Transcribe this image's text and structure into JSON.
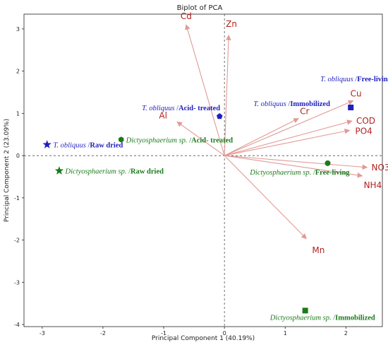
{
  "chart_data": {
    "type": "scatter",
    "title": "Biplot of PCA",
    "xlabel": "Principal Component 1 (40.19%)",
    "ylabel": "Principal Component 2 (23.09%)",
    "xlim": [
      -3.3,
      2.6
    ],
    "ylim": [
      -4.05,
      3.35
    ],
    "xticks": [
      -3,
      -2,
      -1,
      0,
      1,
      2
    ],
    "yticks": [
      -4,
      -3,
      -2,
      -1,
      0,
      1,
      2,
      3
    ],
    "grid": false,
    "loadings": [
      {
        "label": "Cd",
        "x": -0.63,
        "y": 3.1
      },
      {
        "label": "Zn",
        "x": 0.07,
        "y": 2.85
      },
      {
        "label": "Al",
        "x": -0.78,
        "y": 0.8
      },
      {
        "label": "Cr",
        "x": 1.22,
        "y": 0.88
      },
      {
        "label": "Cu",
        "x": 2.12,
        "y": 1.3
      },
      {
        "label": "COD",
        "x": 2.1,
        "y": 0.82
      },
      {
        "label": "PO4",
        "x": 2.06,
        "y": 0.6
      },
      {
        "label": "NO3",
        "x": 2.35,
        "y": -0.28
      },
      {
        "label": "NH4",
        "x": 2.27,
        "y": -0.48
      },
      {
        "label": "Mn",
        "x": 1.35,
        "y": -1.97
      }
    ],
    "observations": [
      {
        "species": "T. obliquus",
        "treatment": "Raw dried",
        "marker": "star",
        "color": "#1f1fbf",
        "x": -2.92,
        "y": 0.26
      },
      {
        "species": "T. obliquus",
        "treatment": "Acid- treated",
        "marker": "pentagon",
        "color": "#1f1fbf",
        "x": -0.08,
        "y": 0.93
      },
      {
        "species": "T. obliquus",
        "treatment": "Immobilized",
        "marker": "square",
        "color": "#1f1fbf",
        "x": 2.08,
        "y": 1.14
      },
      {
        "species": "T. obliquus",
        "treatment": "Free-living",
        "marker": "none",
        "color": "#1f1fbf",
        "x": null,
        "y": null
      },
      {
        "species": "Dictyosphaerium sp.",
        "treatment": "Raw dried",
        "marker": "star",
        "color": "#1a7a1a",
        "x": -2.72,
        "y": -0.36
      },
      {
        "species": "Dictyosphaerium sp.",
        "treatment": "Acid- treated",
        "marker": "hexagon",
        "color": "#1a7a1a",
        "x": -1.7,
        "y": 0.38
      },
      {
        "species": "Dictyosphaerium sp.",
        "treatment": "Free-living",
        "marker": "circle",
        "color": "#1a7a1a",
        "x": 1.7,
        "y": -0.18
      },
      {
        "species": "Dictyosphaerium sp.",
        "treatment": "Immobilized",
        "marker": "square",
        "color": "#1a7a1a",
        "x": 1.33,
        "y": -3.67
      }
    ],
    "colors": {
      "arrow": "#e09a96",
      "variable_text": "#b3231f",
      "tobliquus": "#1f1fbf",
      "dictyo": "#1a7a1a"
    }
  }
}
